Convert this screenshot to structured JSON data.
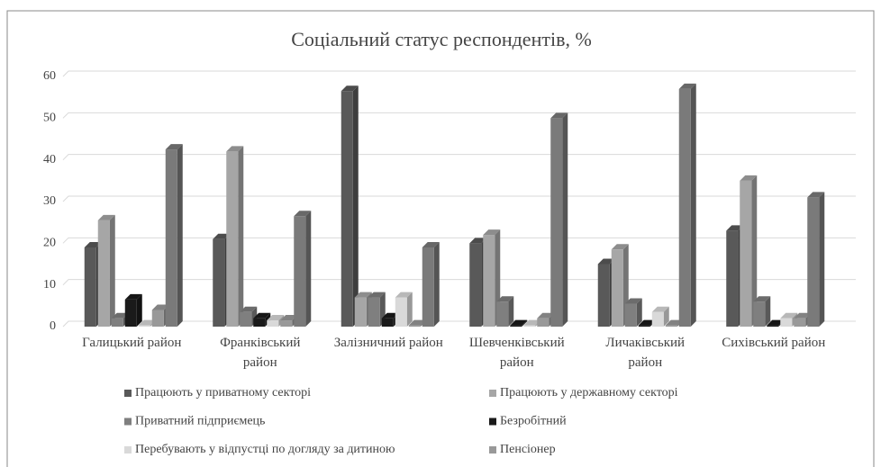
{
  "chart_data": {
    "type": "bar3d",
    "title": "Соціальний статус респондентів, %",
    "categories": [
      "Галицький район",
      "Франківський район",
      "Залізничний район",
      "Шевченківський район",
      "Личаківський район",
      "Сихівський район"
    ],
    "series": [
      {
        "name": "Працюють у приватному секторі",
        "color": "#595959",
        "values": [
          19,
          21,
          56.5,
          20,
          15,
          23
        ]
      },
      {
        "name": "Працюють у державному секторі",
        "color": "#a6a6a6",
        "values": [
          25.5,
          42,
          7,
          22,
          18.5,
          35
        ]
      },
      {
        "name": "Приватний підприємець",
        "color": "#7f7f7f",
        "values": [
          2,
          3.5,
          7,
          6,
          5.5,
          6
        ]
      },
      {
        "name": "Безробітний",
        "color": "#1a1a1a",
        "values": [
          6.5,
          2,
          2,
          0.3,
          0.3,
          0.3
        ]
      },
      {
        "name": "Перебувають у відпустці по догляду за дитиною",
        "color": "#d9d9d9",
        "values": [
          0.3,
          1.5,
          7,
          0.3,
          3.5,
          2
        ]
      },
      {
        "name": "Пенсіонер",
        "color": "#999999",
        "values": [
          4,
          1.5,
          0.3,
          2,
          0.3,
          2
        ]
      },
      {
        "color": "#7a7a7a",
        "values": [
          42.5,
          26.5,
          19,
          50,
          57,
          31
        ]
      }
    ],
    "ylim": [
      0,
      60
    ],
    "yticks": [
      0,
      10,
      20,
      30,
      40,
      50,
      60
    ],
    "grid": true
  }
}
